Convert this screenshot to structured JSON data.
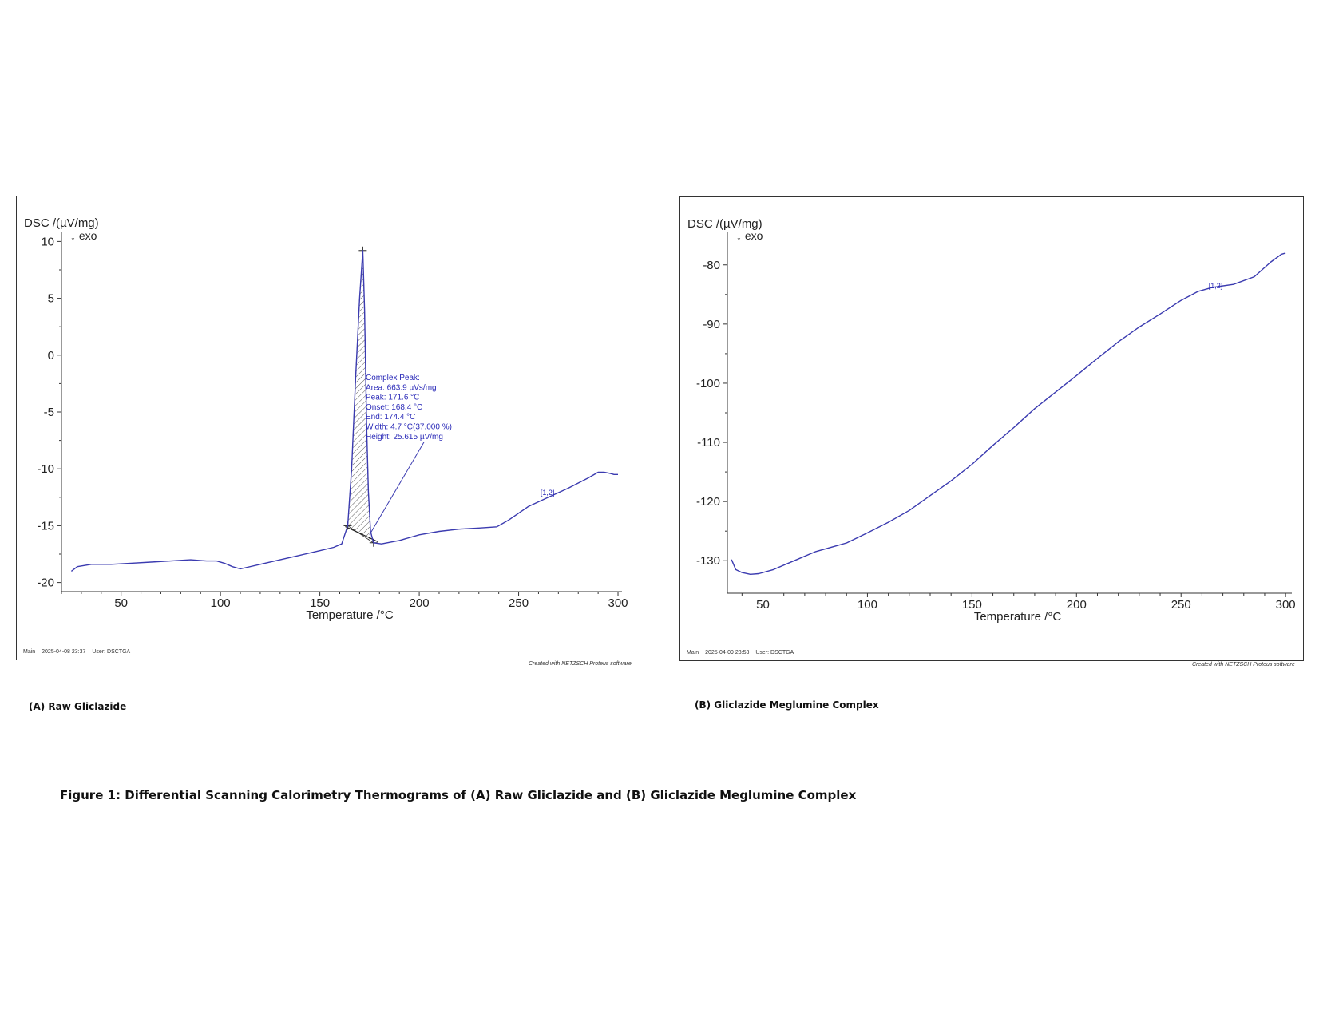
{
  "figure_caption": "Figure 1: Differential Scanning Calorimetry Thermograms of (A) Raw Gliclazide and (B) Gliclazide Meglumine Complex",
  "software_credit": "Created with NETZSCH Proteus software",
  "chart_data": [
    {
      "type": "line",
      "caption": "(A) Raw Gliclazide",
      "ylabel": "DSC /(µV/mg)",
      "xlabel": "Temperature /°C",
      "direction_marker": "↓ exo",
      "footer": {
        "main": "Main",
        "timestamp": "2025-04-08 23:37",
        "user": "User: DSCTGA"
      },
      "xlim": [
        20,
        302
      ],
      "ylim": [
        -20.8,
        10.8
      ],
      "xticks": [
        50,
        100,
        150,
        200,
        250,
        300
      ],
      "yticks": [
        10,
        5,
        0,
        -5,
        -10,
        -15,
        -20
      ],
      "grid": false,
      "series": [
        {
          "x": [
            25,
            28,
            35,
            45,
            55,
            65,
            75,
            85,
            93,
            98,
            102,
            106,
            110,
            120,
            130,
            140,
            150,
            157,
            161,
            164,
            166,
            168,
            170,
            171.6,
            172.5,
            173.5,
            174.4,
            175.5,
            177,
            181,
            190,
            200,
            210,
            220,
            230,
            239,
            245,
            255,
            265,
            275,
            285,
            290,
            293,
            296,
            298,
            300
          ],
          "y": [
            -19.0,
            -18.6,
            -18.4,
            -18.4,
            -18.3,
            -18.2,
            -18.1,
            -18.0,
            -18.1,
            -18.1,
            -18.3,
            -18.6,
            -18.8,
            -18.4,
            -18.0,
            -17.6,
            -17.2,
            -16.9,
            -16.6,
            -15.0,
            -10.0,
            -2.0,
            5.0,
            9.2,
            4.0,
            -6.0,
            -12.0,
            -15.5,
            -16.5,
            -16.6,
            -16.3,
            -15.8,
            -15.5,
            -15.3,
            -15.2,
            -15.1,
            -14.5,
            -13.3,
            -12.5,
            -11.7,
            -10.8,
            -10.3,
            -10.3,
            -10.4,
            -10.5,
            -10.5
          ]
        }
      ],
      "peak_fill": {
        "x_from": 164,
        "x_to": 177
      },
      "peak_annotation": {
        "lines": [
          "Complex Peak:",
          "Area:    663.9 µVs/mg",
          "Peak:    171.6 °C",
          "Onset:  168.4 °C",
          "End:     174.4 °C",
          "Width:       4.7 °C(37.000 %)",
          "Height:  25.615 µV/mg"
        ]
      },
      "segment_label": {
        "text": "[1,2]",
        "x": 265,
        "y": -12.6
      }
    },
    {
      "type": "line",
      "caption": "(B) Gliclazide Meglumine Complex",
      "ylabel": "DSC /(µV/mg)",
      "xlabel": "Temperature /°C",
      "direction_marker": "↓ exo",
      "footer": {
        "main": "Main",
        "timestamp": "2025-04-09 23:53",
        "user": "User: DSCTGA"
      },
      "xlim": [
        33,
        303
      ],
      "ylim": [
        -135.5,
        -74.5
      ],
      "xticks": [
        50,
        100,
        150,
        200,
        250,
        300
      ],
      "yticks": [
        -80,
        -90,
        -100,
        -110,
        -120,
        -130
      ],
      "grid": false,
      "series": [
        {
          "x": [
            35,
            37,
            40,
            44,
            48,
            55,
            65,
            75,
            85,
            90,
            100,
            110,
            120,
            130,
            140,
            150,
            160,
            170,
            180,
            190,
            200,
            210,
            220,
            230,
            240,
            250,
            258,
            265,
            275,
            285,
            293,
            298,
            300
          ],
          "y": [
            -129.8,
            -131.5,
            -132.0,
            -132.3,
            -132.2,
            -131.5,
            -130.0,
            -128.5,
            -127.5,
            -127.0,
            -125.3,
            -123.5,
            -121.5,
            -119.0,
            -116.5,
            -113.7,
            -110.5,
            -107.5,
            -104.3,
            -101.5,
            -98.7,
            -95.8,
            -93.0,
            -90.5,
            -88.3,
            -86.0,
            -84.5,
            -83.8,
            -83.3,
            -82.0,
            -79.5,
            -78.2,
            -78.0
          ]
        }
      ],
      "segment_label": {
        "text": "[1,2]",
        "x": 267,
        "y": -84.5
      }
    }
  ]
}
